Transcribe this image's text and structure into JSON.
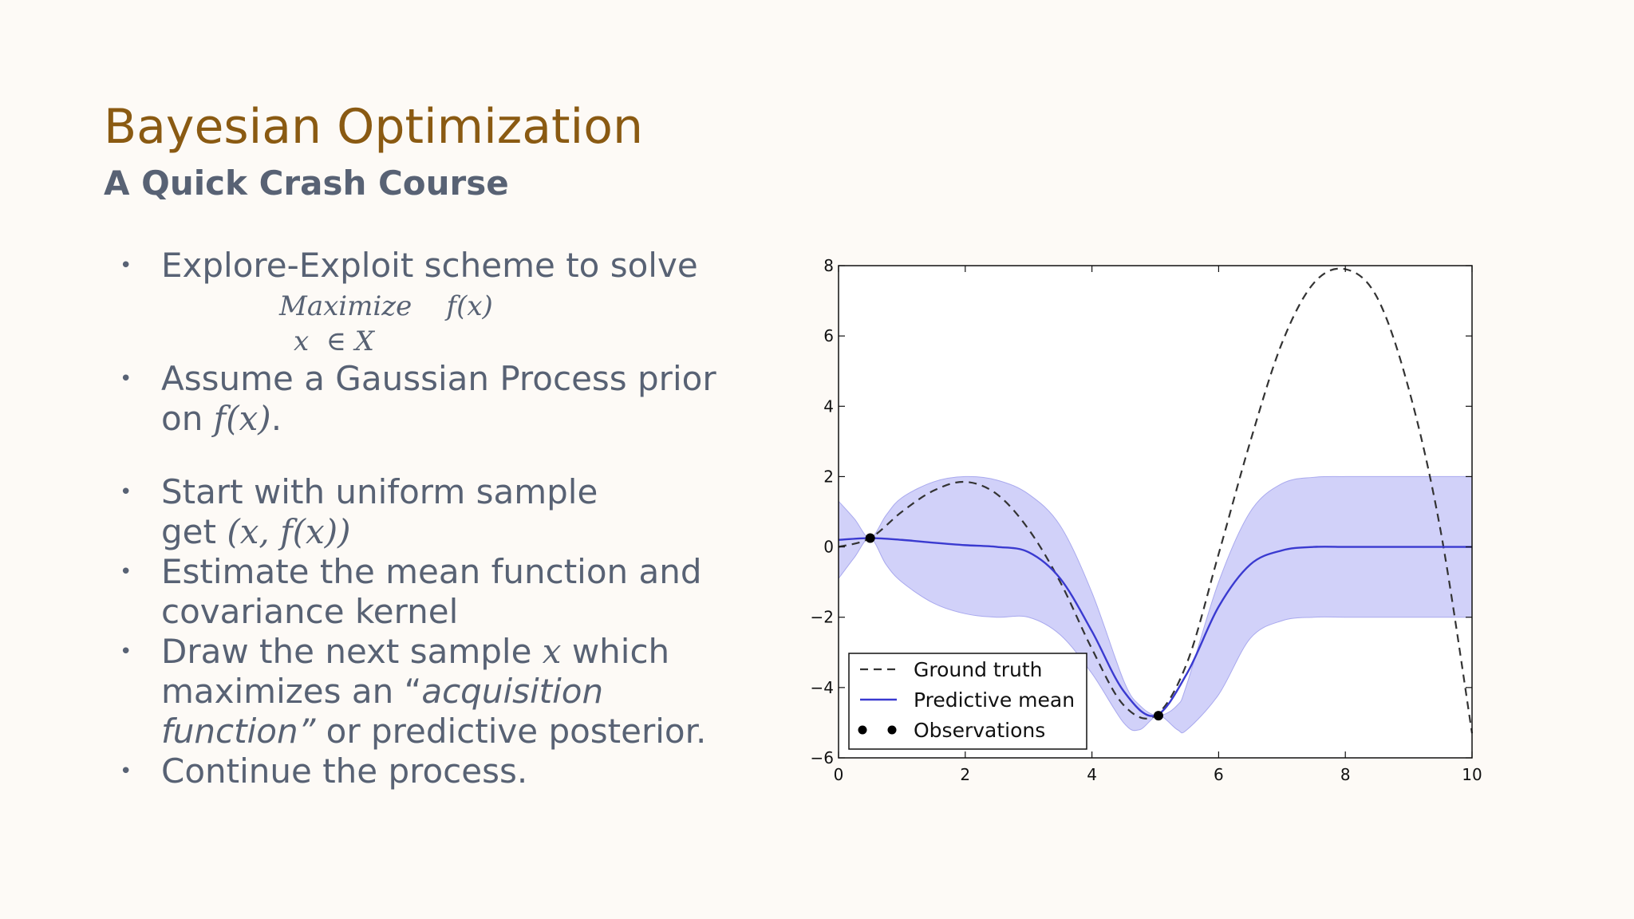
{
  "slide": {
    "title": "Bayesian Optimization",
    "subtitle": "A Quick Crash Course"
  },
  "bullets": {
    "b1": "Explore-Exploit scheme to solve",
    "formula_line1": "Maximize    f(x)",
    "formula_line2": "x  ∈ X",
    "b2_line1": "Assume a Gaussian Process prior",
    "b2_line2_pre": "on ",
    "b2_line2_math": "f(x)",
    "b2_line2_post": ".",
    "b3_line1": "Start with uniform sample",
    "b3_line2_pre": "get ",
    "b3_line2_math": "(x, f(x))",
    "b4_line1": "Estimate the mean function and",
    "b4_line2": "covariance kernel",
    "b5_line1_pre": "Draw the next sample ",
    "b5_line1_math": "x",
    "b5_line1_post": " which",
    "b5_line2_pre": "maximizes an “",
    "b5_line2_italic": "acquisition",
    "b5_line3_italic": "function”",
    "b5_line3_post": "  or predictive posterior.",
    "b6": "Continue the process."
  },
  "colors": {
    "title": "#8a5a12",
    "body": "#586274",
    "mean_line": "#3a3ad0",
    "band_fill": "#c9c9f8",
    "truth_line": "#333333"
  },
  "chart_data": {
    "type": "line",
    "xlim": [
      0,
      10
    ],
    "ylim": [
      -6,
      8
    ],
    "x_ticks": [
      0,
      2,
      4,
      6,
      8,
      10
    ],
    "y_ticks": [
      -6,
      -4,
      -2,
      0,
      2,
      4,
      6,
      8
    ],
    "legend_position": "lower-left",
    "series": [
      {
        "name": "Ground truth",
        "style": "dashed",
        "x": [
          0,
          0.5,
          1,
          1.5,
          2,
          2.5,
          3,
          3.5,
          4,
          4.5,
          5,
          5.5,
          6,
          6.5,
          7,
          7.5,
          8,
          8.5,
          9,
          9.5,
          10
        ],
        "y": [
          0,
          0.25,
          1.0,
          1.6,
          1.85,
          1.5,
          0.5,
          -1.0,
          -2.9,
          -4.5,
          -4.8,
          -3.3,
          -0.2,
          3.0,
          5.8,
          7.5,
          7.9,
          7.1,
          4.5,
          0.5,
          -5.3
        ]
      },
      {
        "name": "Predictive mean",
        "style": "solid",
        "x": [
          0,
          0.5,
          1,
          1.5,
          2,
          2.5,
          3,
          3.5,
          4,
          4.5,
          5,
          5.5,
          6,
          6.5,
          7,
          7.5,
          8,
          8.5,
          9,
          9.5,
          10
        ],
        "y": [
          0.2,
          0.25,
          0.2,
          0.12,
          0.05,
          0.0,
          -0.15,
          -0.9,
          -2.4,
          -4.1,
          -4.8,
          -3.6,
          -1.7,
          -0.5,
          -0.1,
          0,
          0,
          0,
          0,
          0,
          0
        ]
      },
      {
        "name": "Observations",
        "style": "markers",
        "x": [
          0.5,
          5.05
        ],
        "y": [
          0.25,
          -4.8
        ]
      }
    ],
    "confidence_band": {
      "x": [
        0,
        0.25,
        0.5,
        0.75,
        1,
        1.5,
        2,
        2.5,
        3,
        3.5,
        4,
        4.5,
        4.75,
        5.05,
        5.35,
        5.5,
        6,
        6.5,
        7,
        7.5,
        8,
        8.5,
        9,
        9.5,
        10
      ],
      "upper": [
        1.3,
        0.8,
        0.25,
        0.9,
        1.4,
        1.85,
        2.0,
        1.9,
        1.5,
        0.6,
        -1.3,
        -3.8,
        -4.5,
        -4.8,
        -4.5,
        -3.9,
        -1.0,
        1.0,
        1.8,
        1.98,
        2.0,
        2.0,
        2.0,
        2.0,
        2.0
      ],
      "lower": [
        -0.9,
        -0.3,
        0.25,
        -0.5,
        -1.0,
        -1.6,
        -1.9,
        -2.0,
        -2.0,
        -2.5,
        -3.6,
        -5.0,
        -5.2,
        -4.8,
        -5.2,
        -5.2,
        -4.2,
        -2.6,
        -2.1,
        -2.0,
        -2.0,
        -2.0,
        -2.0,
        -2.0,
        -2.0
      ]
    }
  }
}
